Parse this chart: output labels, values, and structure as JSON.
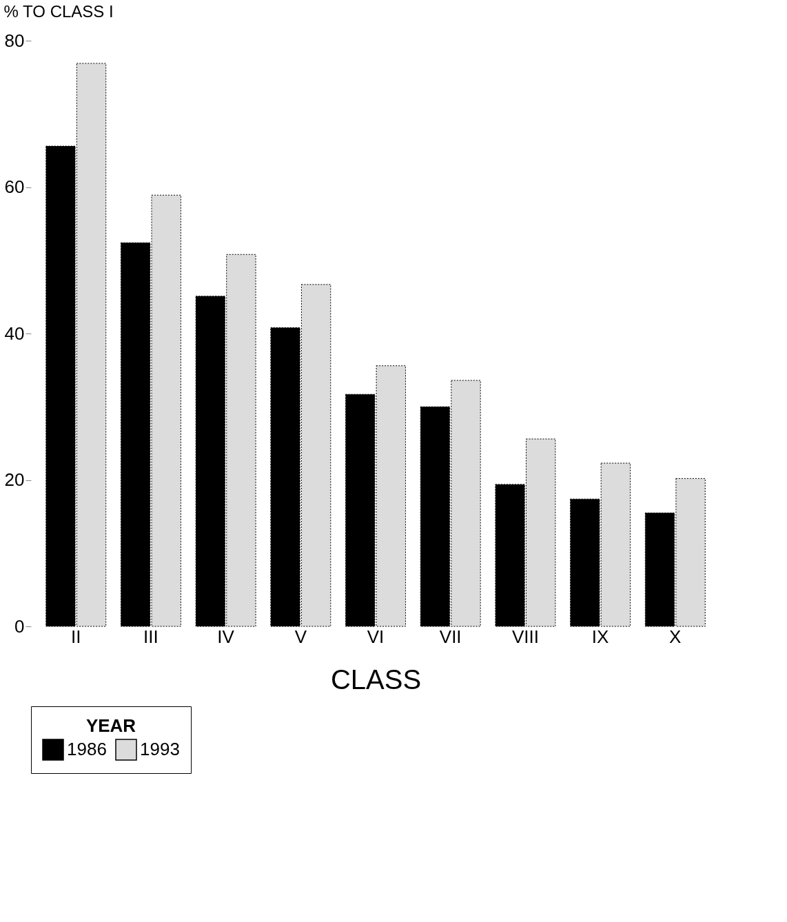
{
  "chart_data": {
    "type": "bar",
    "ylabel": "% TO CLASS I",
    "xlabel": "CLASS",
    "legend_title": "YEAR",
    "legend": "bottom",
    "grid": false,
    "categories": [
      "II",
      "III",
      "IV",
      "V",
      "VI",
      "VII",
      "VIII",
      "IX",
      "X"
    ],
    "series": [
      {
        "name": "1986",
        "color": "#000000",
        "values": [
          65.6,
          52.4,
          45.1,
          40.8,
          31.7,
          30.0,
          19.4,
          17.4,
          15.5
        ]
      },
      {
        "name": "1993",
        "color": "#dcdcdc",
        "values": [
          76.9,
          58.9,
          50.8,
          46.7,
          35.6,
          33.6,
          25.6,
          22.3,
          20.2
        ]
      }
    ],
    "ylim": [
      0,
      80
    ],
    "yticks": [
      0,
      20,
      40,
      60,
      80
    ]
  }
}
